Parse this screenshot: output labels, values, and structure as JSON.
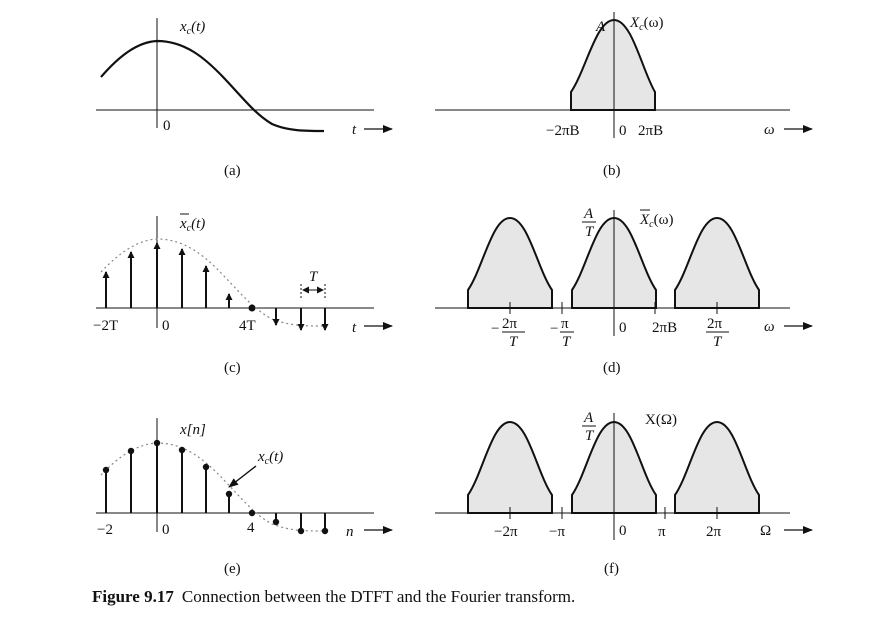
{
  "panels": {
    "a": {
      "caption": "(a)",
      "signal": "x",
      "sub": "c",
      "arg": "(t)",
      "origin": "0",
      "axis": "t"
    },
    "b": {
      "caption": "(b)",
      "signal": "X",
      "sub": "c",
      "arg": "(ω)",
      "peak": "A",
      "left_tick": "−2πB",
      "origin": "0",
      "right_tick": "2πB",
      "axis": "ω"
    },
    "c": {
      "caption": "(c)",
      "signal": "x",
      "sub": "c",
      "arg": "(t)",
      "tick_left": "−2T",
      "origin": "0",
      "tick_4T": "4T",
      "spacing": "T",
      "axis": "t"
    },
    "d": {
      "caption": "(d)",
      "signal": "X",
      "sub": "c",
      "arg": "(ω)",
      "peak_num": "A",
      "peak_den": "T",
      "tick1_num": "2π",
      "tick1_den": "T",
      "tick2_num": "π",
      "tick2_den": "T",
      "minus": "−",
      "origin": "0",
      "tick_2piB": "2πB",
      "tick3_num": "2π",
      "tick3_den": "T",
      "axis": "ω"
    },
    "e": {
      "caption": "(e)",
      "signal": "x[n]",
      "envelope": "x",
      "env_sub": "c",
      "env_arg": "(t)",
      "tick_left": "−2",
      "origin": "0",
      "tick_4": "4",
      "axis": "n"
    },
    "f": {
      "caption": "(f)",
      "signal": "X(Ω)",
      "peak_num": "A",
      "peak_den": "T",
      "tick1": "−2π",
      "tick2": "−π",
      "origin": "0",
      "tick3": "π",
      "tick4": "2π",
      "axis": "Ω"
    }
  },
  "figure": {
    "number": "Figure 9.17",
    "text": "Connection between the DTFT and the Fourier transform."
  }
}
